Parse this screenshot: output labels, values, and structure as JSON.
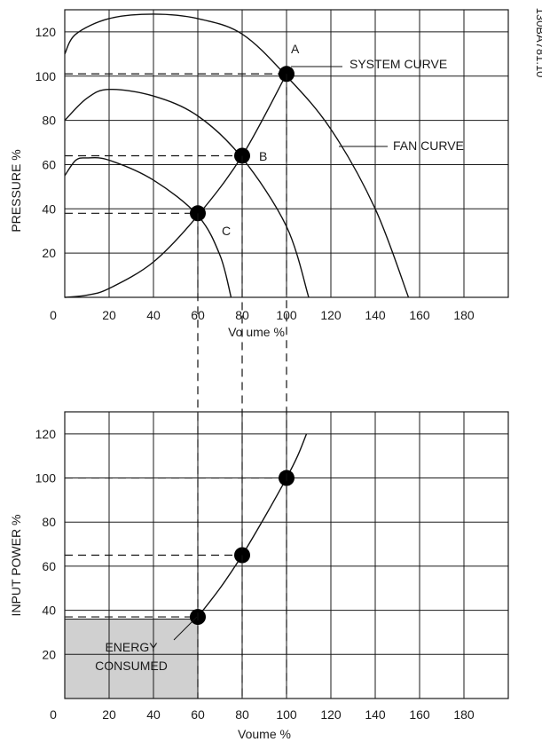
{
  "figure_id": "130BA781.10",
  "chart_data": [
    {
      "type": "line",
      "ylabel": "PRESSURE %",
      "xlabel": "Vo ume %",
      "xlim": [
        0,
        200
      ],
      "ylim": [
        0,
        130
      ],
      "xticks": [
        "0",
        "20",
        "40",
        "60",
        "80",
        "100",
        "120",
        "140",
        "160",
        "180"
      ],
      "xtick_values": [
        0,
        20,
        40,
        60,
        80,
        100,
        120,
        140,
        160,
        180
      ],
      "yticks": [
        "20",
        "40",
        "60",
        "80",
        "100",
        "120"
      ],
      "ytick_values": [
        20,
        40,
        60,
        80,
        100,
        120
      ],
      "grid": true,
      "series": [
        {
          "name": "FAN CURVE",
          "x": [
            0,
            5,
            20,
            40,
            60,
            80,
            100,
            120,
            140,
            155
          ],
          "y": [
            110,
            119,
            126,
            128,
            126,
            119,
            100,
            76,
            40,
            0
          ]
        },
        {
          "x": [
            0,
            10,
            20,
            40,
            60,
            80,
            100,
            110
          ],
          "y": [
            80,
            90,
            94,
            91,
            82,
            63,
            32,
            0
          ]
        },
        {
          "x": [
            0,
            5,
            10,
            20,
            40,
            60,
            70,
            75
          ],
          "y": [
            55,
            62,
            63,
            62,
            53,
            37,
            19,
            0
          ]
        },
        {
          "name": "SYSTEM CURVE",
          "x": [
            0,
            10,
            20,
            40,
            60,
            80,
            100
          ],
          "y": [
            0,
            1,
            4,
            16,
            37,
            64,
            101
          ]
        }
      ],
      "points": [
        {
          "label": "A",
          "x": 100,
          "y": 101
        },
        {
          "label": "B",
          "x": 80,
          "y": 64
        },
        {
          "label": "C",
          "x": 60,
          "y": 38
        }
      ],
      "annotations": [
        "SYSTEM CURVE",
        "FAN CURVE",
        "A",
        "B",
        "C"
      ]
    },
    {
      "type": "line",
      "ylabel": "INPUT POWER %",
      "xlabel": "Voume %",
      "xlim": [
        0,
        200
      ],
      "ylim": [
        0,
        130
      ],
      "xticks": [
        "0",
        "20",
        "40",
        "60",
        "80",
        "100",
        "120",
        "140",
        "160",
        "180"
      ],
      "xtick_values": [
        0,
        20,
        40,
        60,
        80,
        100,
        120,
        140,
        160,
        180
      ],
      "yticks": [
        "20",
        "40",
        "60",
        "80",
        "100",
        "120"
      ],
      "ytick_values": [
        20,
        40,
        60,
        80,
        100,
        120
      ],
      "grid": true,
      "series": [
        {
          "x": [
            60,
            70,
            80,
            90,
            100,
            105,
            109
          ],
          "y": [
            37,
            50,
            65,
            82,
            100,
            110,
            120
          ]
        }
      ],
      "points": [
        {
          "x": 60,
          "y": 37
        },
        {
          "x": 80,
          "y": 65
        },
        {
          "x": 100,
          "y": 100
        }
      ],
      "shaded_region": {
        "x": [
          0,
          60
        ],
        "y": [
          0,
          36
        ],
        "color": "#d0d0d0"
      },
      "annotations": [
        "ENERGY",
        "CONSUMED"
      ]
    }
  ]
}
